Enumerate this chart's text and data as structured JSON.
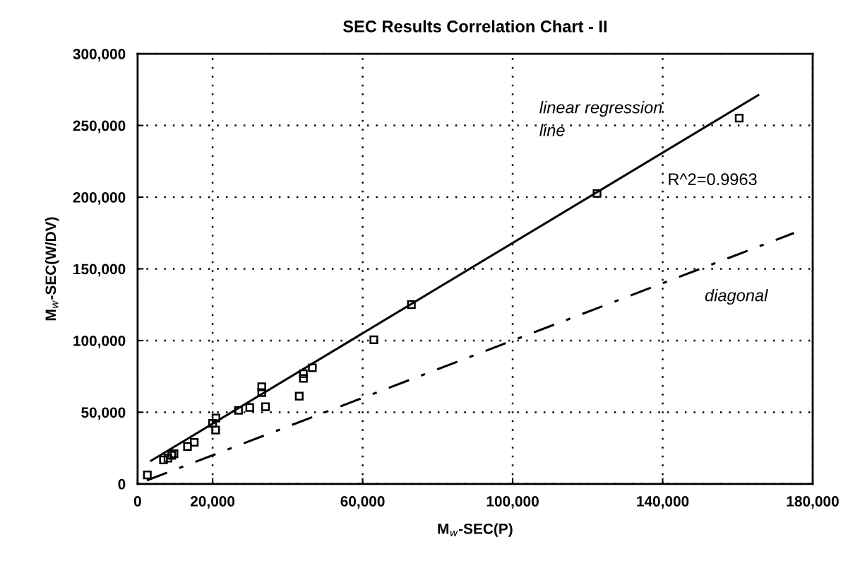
{
  "chart_data": {
    "type": "scatter",
    "title": "SEC Results Correlation Chart - II",
    "xlabel": "M$_{w}$-SEC(P)",
    "ylabel": "M$_{w}$-SEC(W/DV)",
    "xlim": [
      0,
      180000
    ],
    "ylim": [
      0,
      300000
    ],
    "xticks": [
      0,
      {
        "value": 20000,
        "label": "20,000"
      },
      {
        "value": 60000,
        "label": "60,000"
      },
      {
        "value": 100000,
        "label": "100,000"
      },
      {
        "value": 140000,
        "label": "140,000"
      },
      {
        "value": 180000,
        "label": "180,000"
      }
    ],
    "yticks": [
      0,
      {
        "value": 50000,
        "label": "50,000"
      },
      {
        "value": 100000,
        "label": "100,000"
      },
      {
        "value": 150000,
        "label": "150,000"
      },
      {
        "value": 200000,
        "label": "200,000"
      },
      {
        "value": 250000,
        "label": "250,000"
      },
      {
        "value": 300000,
        "label": "300,000"
      }
    ],
    "grid": true,
    "legend": false,
    "series": [
      {
        "color": "#000000",
        "marker": "square",
        "x": [
          2600,
          6900,
          8100,
          9100,
          9700,
          13300,
          15100,
          20000,
          20900,
          20800,
          26900,
          29900,
          33100,
          33100,
          34100,
          43100,
          44200,
          44200,
          46600,
          63000,
          73000,
          122500,
          160400
        ],
        "values": [
          6300,
          16700,
          18000,
          20000,
          21100,
          26100,
          29000,
          42200,
          45900,
          37600,
          51300,
          53300,
          63700,
          67800,
          53800,
          61200,
          76900,
          73600,
          81000,
          100500,
          125000,
          202600,
          255100
        ]
      },
      {
        "type": "line",
        "color": "#000000",
        "marker": "none",
        "line_style": "solid",
        "x": [
          3600,
          165500
        ],
        "values": [
          16200,
          271200
        ]
      },
      {
        "type": "line",
        "color": "#000000",
        "marker": "none",
        "line_style": "dashdot",
        "x": [
          2500,
          175000
        ],
        "values": [
          2500,
          175000
        ]
      }
    ],
    "annotations": [
      "linear regression\nline",
      "R^2=0.9963",
      "diagonal"
    ]
  }
}
